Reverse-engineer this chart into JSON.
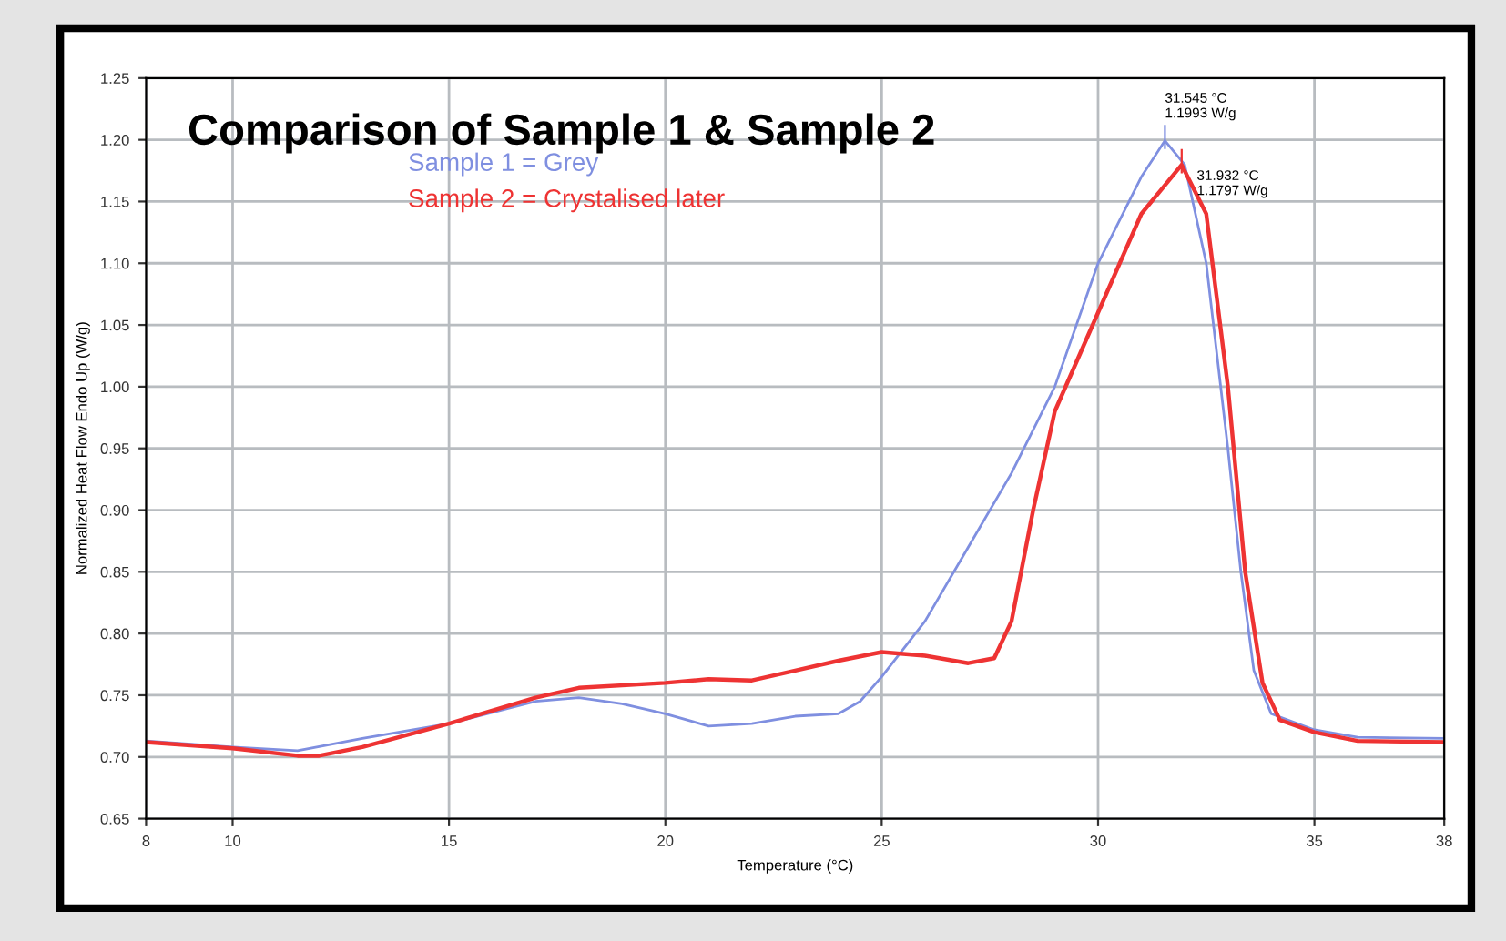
{
  "chart_data": {
    "type": "line",
    "title": "Comparison of Sample 1 & Sample 2",
    "xlabel": "Temperature (°C)",
    "ylabel": "Normalized Heat Flow Endo Up (W/g)",
    "xlim": [
      8,
      38
    ],
    "xticks": [
      8,
      10,
      15,
      20,
      25,
      30,
      35,
      38
    ],
    "ylim": [
      0.65,
      1.25
    ],
    "yticks": [
      {
        "value": 0.65,
        "label": "0.65"
      },
      {
        "value": 0.7,
        "label": "0.70"
      },
      {
        "value": 0.75,
        "label": "0.75"
      },
      {
        "value": 0.8,
        "label": "0.80"
      },
      {
        "value": 0.85,
        "label": "0.85"
      },
      {
        "value": 0.9,
        "label": "0.90"
      },
      {
        "value": 0.95,
        "label": "0.95"
      },
      {
        "value": 1.0,
        "label": "1.00"
      },
      {
        "value": 1.05,
        "label": "1.05"
      },
      {
        "value": 1.1,
        "label": "1.10"
      },
      {
        "value": 1.15,
        "label": "1.15"
      },
      {
        "value": 1.2,
        "label": "1.20"
      },
      {
        "value": 1.25,
        "label": "1.25"
      }
    ],
    "grid": true,
    "legend": "top",
    "line_style": "solid",
    "marker": "none",
    "series": [
      {
        "name": "Sample 1 = Grey",
        "color": "#7f8fe0",
        "x": [
          8,
          10,
          11.5,
          13,
          15,
          17,
          18,
          19,
          20,
          21,
          22,
          23,
          24,
          24.5,
          25,
          26,
          27,
          28,
          29,
          30,
          31,
          31.545,
          32,
          32.5,
          33,
          33.3,
          33.6,
          34,
          35,
          36,
          38
        ],
        "values": [
          0.713,
          0.708,
          0.705,
          0.715,
          0.727,
          0.745,
          0.748,
          0.743,
          0.735,
          0.725,
          0.727,
          0.733,
          0.735,
          0.745,
          0.765,
          0.81,
          0.87,
          0.93,
          1.0,
          1.1,
          1.17,
          1.1993,
          1.18,
          1.1,
          0.95,
          0.85,
          0.77,
          0.735,
          0.722,
          0.716,
          0.715
        ]
      },
      {
        "name": "Sample 2 = Crystalised later",
        "color": "#ee3333",
        "x": [
          8,
          10,
          11.5,
          12,
          13,
          15,
          17,
          18,
          20,
          21,
          22,
          23,
          24,
          25,
          26,
          27,
          27.6,
          28,
          28.5,
          29,
          30,
          31,
          31.932,
          32.5,
          33,
          33.4,
          33.8,
          34.2,
          35,
          36,
          38
        ],
        "values": [
          0.712,
          0.707,
          0.701,
          0.701,
          0.708,
          0.727,
          0.748,
          0.756,
          0.76,
          0.763,
          0.762,
          0.77,
          0.778,
          0.785,
          0.782,
          0.776,
          0.78,
          0.81,
          0.9,
          0.98,
          1.06,
          1.14,
          1.1797,
          1.14,
          1.0,
          0.85,
          0.76,
          0.73,
          0.72,
          0.713,
          0.712
        ]
      }
    ],
    "annotations": [
      {
        "text": "31.545 °C\n1.1993 W/g",
        "x": 31.545,
        "y": 1.1993
      },
      {
        "text": "31.932 °C\n1.1797 W/g",
        "x": 31.932,
        "y": 1.1797
      }
    ]
  }
}
